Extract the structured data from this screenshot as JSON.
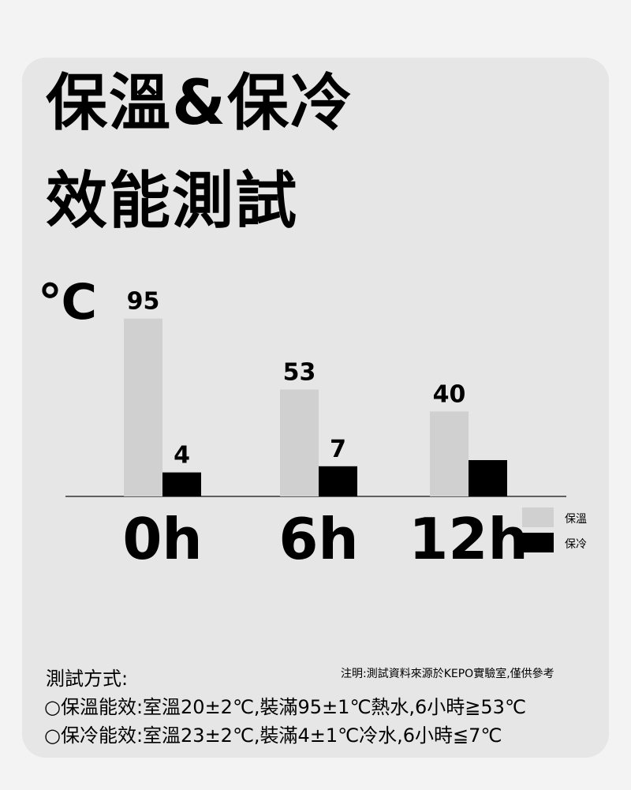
{
  "title_line1": "保溫&保冷",
  "title_line2": "效能測試",
  "unit": "℃",
  "chart_data": {
    "type": "bar",
    "categories": [
      "0h",
      "6h",
      "12h"
    ],
    "series": [
      {
        "name": "保溫",
        "values": [
          95,
          53,
          40
        ],
        "labels": [
          "95",
          "53",
          "40"
        ],
        "color": "#d0d0d0"
      },
      {
        "name": "保冷",
        "values": [
          4,
          7,
          10
        ],
        "labels": [
          "4",
          "7",
          ""
        ],
        "color": "#000000"
      }
    ],
    "ylabel": "℃",
    "legend": "right",
    "grid": false
  },
  "notes": {
    "disclaimer": "注明:測試資料來源於KEPO實驗室,僅供參考",
    "heading": "測試方式:",
    "line1": "○保溫能效:室溫20±2℃,裝滿95±1℃熱水,6小時≧53℃",
    "line2": "○保冷能效:室溫23±2℃,裝滿4±1℃冷水,6小時≦7℃"
  }
}
